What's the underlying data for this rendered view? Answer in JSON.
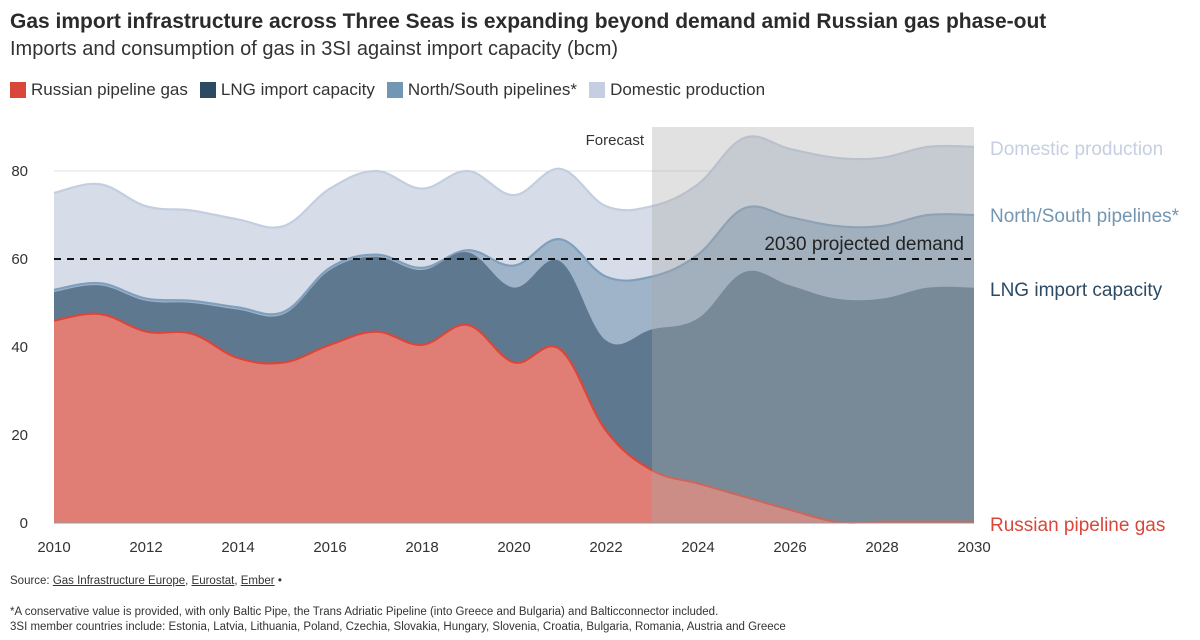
{
  "title": "Gas import infrastructure across Three Seas is expanding beyond demand amid Russian gas phase-out",
  "subtitle": "Imports and consumption of gas in 3SI against import capacity (bcm)",
  "legend": [
    {
      "label": "Russian pipeline gas",
      "color": "#d9473a"
    },
    {
      "label": "LNG import capacity",
      "color": "#2d4a63"
    },
    {
      "label": "North/South pipelines*",
      "color": "#7396b2"
    },
    {
      "label": "Domestic production",
      "color": "#c5cfe1"
    }
  ],
  "colors": {
    "russian_fill": "#e07e75",
    "russian_line": "#d9473a",
    "lng_fill": "#5e7890",
    "ns_fill": "#9fb4c9",
    "ns_line": "#7f9fbc",
    "dom_fill": "#d6dde9",
    "dom_line": "#c3cee0",
    "forecast_band": "#a9a9a9"
  },
  "chart_data": {
    "type": "area",
    "stacked": false,
    "x": [
      2010,
      2011,
      2012,
      2013,
      2014,
      2015,
      2016,
      2017,
      2018,
      2019,
      2020,
      2021,
      2022,
      2023,
      2024,
      2025,
      2026,
      2027,
      2028,
      2029,
      2030
    ],
    "series": [
      {
        "name": "Domestic production",
        "values": [
          75,
          77,
          72,
          71,
          69,
          67.5,
          76,
          80,
          76,
          80,
          74.5,
          80.5,
          72,
          72,
          77,
          87.5,
          85,
          83,
          83,
          85.5,
          85.5
        ]
      },
      {
        "name": "North/South pipelines*",
        "values": [
          53,
          54.5,
          51,
          50.5,
          49,
          48,
          58,
          61,
          58,
          62,
          58.5,
          64.5,
          56,
          56,
          61,
          71.5,
          69.5,
          67.5,
          67.5,
          70,
          70
        ]
      },
      {
        "name": "LNG import capacity",
        "values": [
          52.5,
          54,
          50.5,
          50,
          48.5,
          47.5,
          57.5,
          60.5,
          57.5,
          61.5,
          53.5,
          59.5,
          41.5,
          44,
          46.5,
          57,
          54,
          51,
          51,
          53.5,
          53.5
        ]
      },
      {
        "name": "Russian pipeline gas",
        "values": [
          46,
          47.5,
          43.5,
          43,
          37.5,
          36.5,
          40.5,
          43.5,
          40.5,
          45,
          36.5,
          39.5,
          21,
          12,
          9,
          6,
          3,
          0.3,
          0.3,
          0.3,
          0.3
        ]
      }
    ],
    "demand_line": {
      "label": "2030 projected demand",
      "value": 60
    },
    "forecast": {
      "label": "Forecast",
      "from": 2023,
      "to": 2030
    },
    "end_labels": [
      "Domestic production",
      "North/South pipelines*",
      "LNG import capacity",
      "Russian pipeline gas"
    ],
    "xticks": [
      "2010",
      "2012",
      "2014",
      "2016",
      "2018",
      "2020",
      "2022",
      "2024",
      "2026",
      "2028",
      "2030"
    ],
    "yticks": [
      "0",
      "20",
      "40",
      "60",
      "80"
    ],
    "xlim": [
      2010,
      2030
    ],
    "ylim": [
      0,
      90
    ],
    "grid": true
  },
  "footer": {
    "source_prefix": "Source: ",
    "source_links": [
      "Gas Infrastructure Europe",
      "Eurostat",
      "Ember"
    ],
    "source_sep": ", ",
    "source_suffix": " •",
    "note1": "*A conservative value is provided, with only Baltic Pipe, the Trans Adriatic Pipeline (into Greece and Bulgaria) and Balticconnector included.",
    "note2": "3SI member countries include: Estonia, Latvia, Lithuania, Poland, Czechia, Slovakia, Hungary, Slovenia, Croatia, Bulgaria, Romania, Austria and Greece"
  }
}
